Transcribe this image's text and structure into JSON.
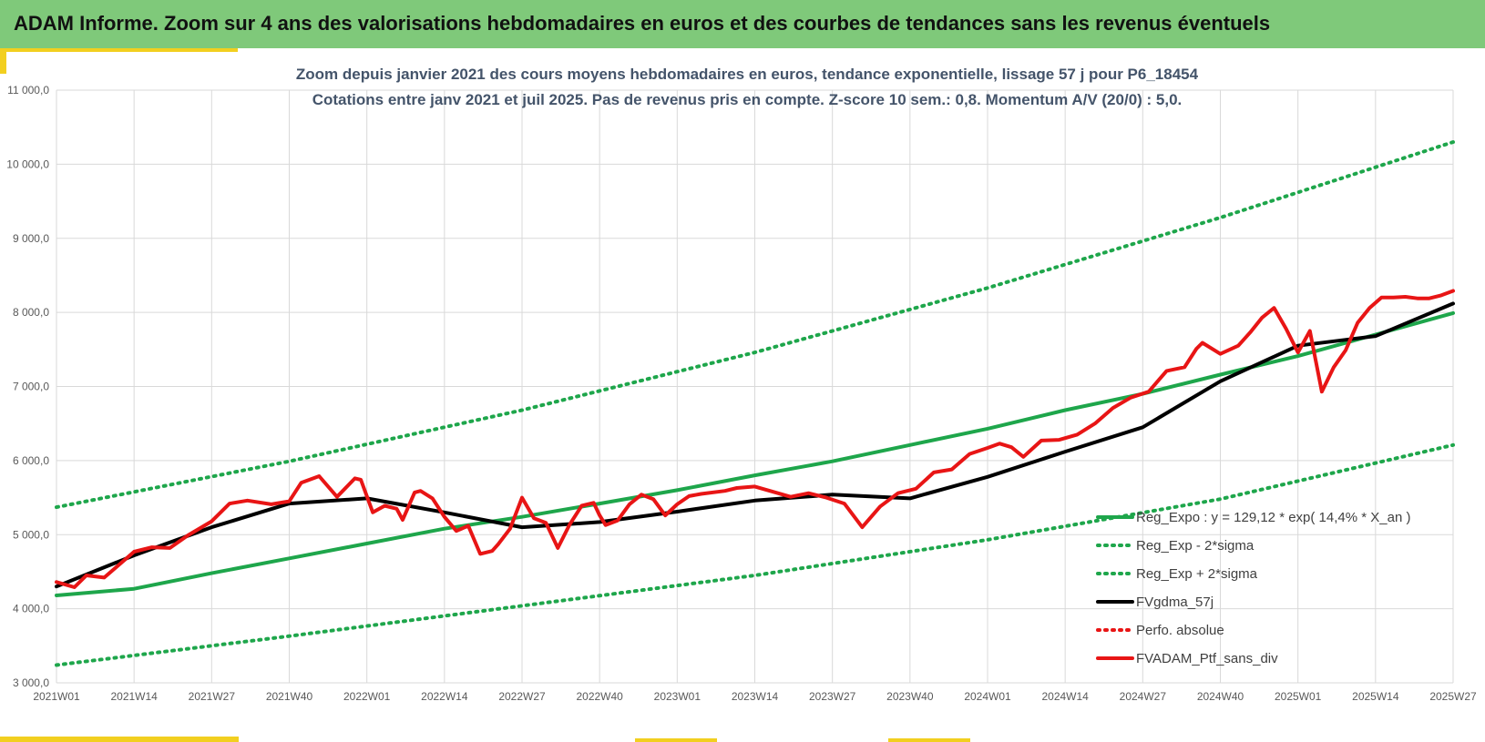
{
  "header": {
    "title": "ADAM Informe. Zoom sur 4 ans des valorisations hebdomadaires en euros et des courbes de tendances sans les revenus éventuels"
  },
  "colors": {
    "banner": "#7fc97a",
    "accent": "#f2cf1f",
    "trend": "#1ea64b",
    "smooth": "#000000",
    "portfolio": "#e81515",
    "title_text": "#44546a"
  },
  "chart_data": {
    "type": "line",
    "title_line1": "Zoom depuis janvier 2021 des cours moyens hebdomadaires  en euros, tendance exponentielle, lissage 57 j pour P6_18454",
    "title_line2": "Cotations entre janv 2021 et juil 2025. Pas de revenus pris en compte. Z-score 10 sem.: 0,8. Momentum A/V (20/0) : 5,0.",
    "x_ticks": [
      "2021W01",
      "2021W14",
      "2021W27",
      "2021W40",
      "2022W01",
      "2022W14",
      "2022W27",
      "2022W40",
      "2023W01",
      "2023W14",
      "2023W27",
      "2023W40",
      "2024W01",
      "2024W14",
      "2024W27",
      "2024W40",
      "2025W01",
      "2025W14",
      "2025W27"
    ],
    "y_ticks": [
      "3 000,0",
      "4 000,0",
      "5 000,0",
      "6 000,0",
      "7 000,0",
      "8 000,0",
      "9 000,0",
      "10 000,0",
      "11 000,0"
    ],
    "ylim": [
      3000,
      11000
    ],
    "grid": true,
    "legend_position": "bottom-right",
    "series": [
      {
        "name": "Reg_Expo : y = 129,12 * exp( 14,4% *  X_an )",
        "color": "#1ea64b",
        "style": "solid",
        "x": [
          0,
          13,
          26,
          39,
          52,
          65,
          78,
          91,
          104,
          117,
          130,
          143,
          156,
          169,
          182,
          195,
          208,
          221,
          234
        ],
        "y": [
          4180,
          4270,
          4480,
          4680,
          4880,
          5080,
          5240,
          5420,
          5600,
          5800,
          5990,
          6210,
          6430,
          6680,
          6900,
          7160,
          7410,
          7700,
          7990
        ]
      },
      {
        "name": "Reg_Exp - 2*sigma",
        "color": "#1ea64b",
        "style": "dotted",
        "x": [
          0,
          39,
          78,
          117,
          156,
          195,
          234
        ],
        "y": [
          3240,
          3630,
          4040,
          4450,
          4930,
          5480,
          6210
        ]
      },
      {
        "name": "Reg_Exp + 2*sigma",
        "color": "#1ea64b",
        "style": "dotted",
        "x": [
          0,
          39,
          78,
          117,
          156,
          195,
          234
        ],
        "y": [
          5370,
          5990,
          6680,
          7460,
          8330,
          9280,
          10300
        ]
      },
      {
        "name": "FVgdma_57j",
        "color": "#000000",
        "style": "solid",
        "x": [
          0,
          13,
          26,
          39,
          52,
          65,
          78,
          91,
          104,
          117,
          130,
          143,
          156,
          169,
          182,
          195,
          208,
          221,
          234
        ],
        "y": [
          4300,
          4720,
          5100,
          5420,
          5490,
          5300,
          5100,
          5170,
          5310,
          5460,
          5540,
          5490,
          5780,
          6120,
          6450,
          7070,
          7550,
          7680,
          8120
        ]
      },
      {
        "name": "Perfo. absolue",
        "color": "#e81515",
        "style": "dotted",
        "x": [],
        "y": []
      },
      {
        "name": "FVADAM_Ptf_sans_div",
        "color": "#e81515",
        "style": "solid",
        "x": [
          0,
          3,
          5,
          8,
          13,
          16,
          19,
          22,
          26,
          29,
          32,
          36,
          39,
          41,
          44,
          47,
          50,
          51,
          53,
          55,
          57,
          58,
          60,
          61,
          63,
          65,
          67,
          69,
          71,
          73,
          74,
          76,
          78,
          80,
          82,
          84,
          86,
          88,
          90,
          91,
          92,
          94,
          96,
          98,
          100,
          102,
          104,
          106,
          108,
          112,
          114,
          117,
          120,
          123,
          126,
          129,
          132,
          135,
          138,
          141,
          144,
          147,
          150,
          153,
          156,
          158,
          160,
          162,
          165,
          168,
          171,
          174,
          177,
          180,
          183,
          186,
          189,
          191,
          192,
          195,
          198,
          200,
          202,
          204,
          206,
          208,
          210,
          212,
          214,
          216,
          218,
          220,
          222,
          224,
          226,
          228,
          230,
          232,
          234
        ],
        "y": [
          4360,
          4290,
          4450,
          4420,
          4770,
          4830,
          4820,
          4990,
          5180,
          5420,
          5460,
          5410,
          5450,
          5700,
          5790,
          5510,
          5760,
          5740,
          5300,
          5390,
          5350,
          5200,
          5570,
          5590,
          5490,
          5240,
          5050,
          5120,
          4740,
          4780,
          4870,
          5080,
          5500,
          5220,
          5160,
          4820,
          5140,
          5390,
          5430,
          5260,
          5130,
          5190,
          5410,
          5540,
          5480,
          5260,
          5410,
          5520,
          5550,
          5590,
          5630,
          5650,
          5580,
          5510,
          5560,
          5500,
          5420,
          5100,
          5380,
          5560,
          5620,
          5840,
          5880,
          6090,
          6170,
          6230,
          6180,
          6050,
          6270,
          6280,
          6350,
          6500,
          6710,
          6850,
          6930,
          7210,
          7260,
          7510,
          7590,
          7440,
          7550,
          7730,
          7930,
          8060,
          7780,
          7460,
          7750,
          6930,
          7260,
          7490,
          7860,
          8060,
          8200,
          8200,
          8210,
          8190,
          8190,
          8230,
          8290
        ]
      }
    ]
  }
}
